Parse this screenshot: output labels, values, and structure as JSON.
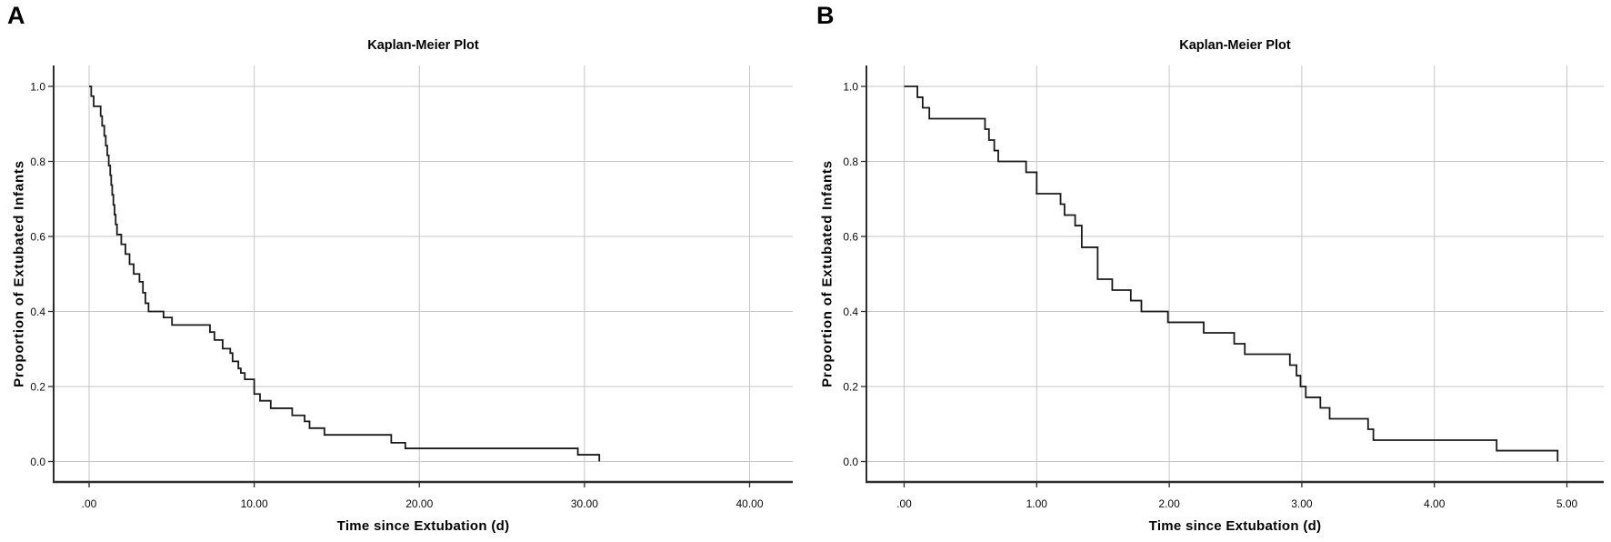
{
  "figure": {
    "background": "#ffffff"
  },
  "colors": {
    "curve": "#1a1a1a",
    "grid": "#c6c6c6",
    "axis": "#2e2e2e",
    "text": "#0a0a0a"
  },
  "chart_data": [
    {
      "type": "line",
      "subtype": "kaplan-meier-step",
      "panel_label": "A",
      "title": "Kaplan-Meier Plot",
      "xlabel": "Time since Extubation (d)",
      "ylabel": "Proportion of Extubated Infants",
      "xlim": [
        0,
        40
      ],
      "ylim": [
        0,
        1.0
      ],
      "xtick_values": [
        0,
        10,
        20,
        30,
        40
      ],
      "xtick_labels": [
        ".00",
        "10.00",
        "20.00",
        "30.00",
        "40.00"
      ],
      "ytick_values": [
        0,
        0.2,
        0.4,
        0.6,
        0.8,
        1
      ],
      "ytick_labels": [
        "0.0",
        "0.2",
        "0.4",
        "0.6",
        "0.8",
        "1.0"
      ],
      "grid": true,
      "legend": "none",
      "line_color": "#1a1a1a",
      "steps": [
        [
          0.0,
          1.0
        ],
        [
          0.13,
          0.974
        ],
        [
          0.28,
          0.947
        ],
        [
          0.7,
          0.921
        ],
        [
          0.79,
          0.895
        ],
        [
          0.92,
          0.868
        ],
        [
          1.01,
          0.842
        ],
        [
          1.1,
          0.816
        ],
        [
          1.19,
          0.789
        ],
        [
          1.28,
          0.763
        ],
        [
          1.34,
          0.737
        ],
        [
          1.4,
          0.711
        ],
        [
          1.47,
          0.684
        ],
        [
          1.54,
          0.658
        ],
        [
          1.61,
          0.632
        ],
        [
          1.69,
          0.605
        ],
        [
          1.95,
          0.579
        ],
        [
          2.2,
          0.553
        ],
        [
          2.45,
          0.526
        ],
        [
          2.7,
          0.5
        ],
        [
          3.05,
          0.479
        ],
        [
          3.26,
          0.45
        ],
        [
          3.41,
          0.422
        ],
        [
          3.6,
          0.4
        ],
        [
          4.51,
          0.384
        ],
        [
          5.02,
          0.364
        ],
        [
          7.32,
          0.345
        ],
        [
          7.59,
          0.324
        ],
        [
          8.09,
          0.301
        ],
        [
          8.55,
          0.289
        ],
        [
          8.69,
          0.267
        ],
        [
          9.04,
          0.248
        ],
        [
          9.19,
          0.236
        ],
        [
          9.43,
          0.219
        ],
        [
          10.0,
          0.18
        ],
        [
          10.35,
          0.162
        ],
        [
          11.0,
          0.142
        ],
        [
          12.3,
          0.123
        ],
        [
          13.05,
          0.107
        ],
        [
          13.35,
          0.089
        ],
        [
          14.25,
          0.071
        ],
        [
          18.3,
          0.05
        ],
        [
          19.15,
          0.035
        ],
        [
          29.6,
          0.018
        ],
        [
          30.9,
          0.0
        ]
      ]
    },
    {
      "type": "line",
      "subtype": "kaplan-meier-step",
      "panel_label": "B",
      "title": "Kaplan-Meier Plot",
      "xlabel": "Time since Extubation (d)",
      "ylabel": "Proportion of Extubated Infants",
      "xlim": [
        0,
        5
      ],
      "ylim": [
        0,
        1.0
      ],
      "xtick_values": [
        0,
        1,
        2,
        3,
        4,
        5
      ],
      "xtick_labels": [
        ".00",
        "1.00",
        "2.00",
        "3.00",
        "4.00",
        "5.00"
      ],
      "ytick_values": [
        0,
        0.2,
        0.4,
        0.6,
        0.8,
        1
      ],
      "ytick_labels": [
        "0.0",
        "0.2",
        "0.4",
        "0.6",
        "0.8",
        "1.0"
      ],
      "grid": true,
      "legend": "none",
      "line_color": "#1a1a1a",
      "steps": [
        [
          0.0,
          1.0
        ],
        [
          0.1,
          0.971
        ],
        [
          0.14,
          0.943
        ],
        [
          0.19,
          0.914
        ],
        [
          0.61,
          0.886
        ],
        [
          0.64,
          0.857
        ],
        [
          0.68,
          0.829
        ],
        [
          0.71,
          0.8
        ],
        [
          0.92,
          0.771
        ],
        [
          1.0,
          0.714
        ],
        [
          1.18,
          0.686
        ],
        [
          1.21,
          0.657
        ],
        [
          1.29,
          0.629
        ],
        [
          1.34,
          0.571
        ],
        [
          1.46,
          0.486
        ],
        [
          1.57,
          0.457
        ],
        [
          1.71,
          0.429
        ],
        [
          1.79,
          0.4
        ],
        [
          1.99,
          0.371
        ],
        [
          2.26,
          0.343
        ],
        [
          2.49,
          0.314
        ],
        [
          2.57,
          0.286
        ],
        [
          2.91,
          0.257
        ],
        [
          2.96,
          0.229
        ],
        [
          2.99,
          0.2
        ],
        [
          3.03,
          0.171
        ],
        [
          3.14,
          0.143
        ],
        [
          3.21,
          0.114
        ],
        [
          3.5,
          0.086
        ],
        [
          3.54,
          0.057
        ],
        [
          4.47,
          0.029
        ],
        [
          4.93,
          0.0
        ]
      ]
    }
  ]
}
